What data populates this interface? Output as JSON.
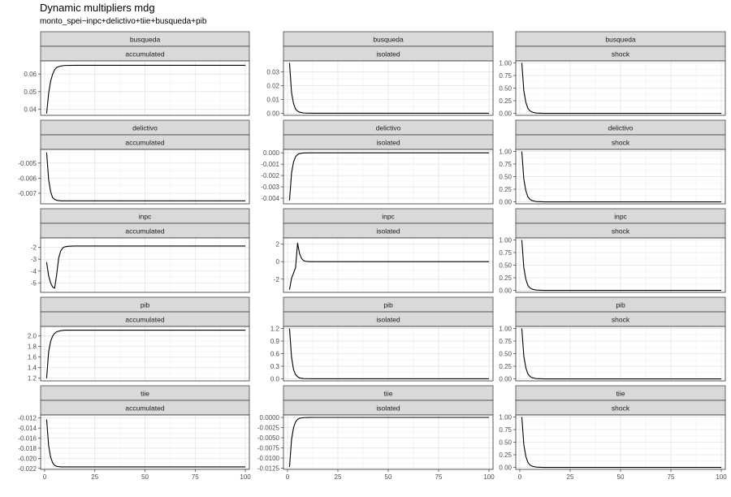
{
  "title": "Dynamic multipliers mdg",
  "subtitle": "monto_spei~inpc+delictivo+tiie+busqueda+pib",
  "chart_data": {
    "type": "line",
    "title": "Dynamic multipliers mdg",
    "subtitle": "monto_spei~inpc+delictivo+tiie+busqueda+pib",
    "facet_rows": [
      "busqueda",
      "delictivo",
      "inpc",
      "pib",
      "tiie"
    ],
    "facet_cols": [
      "accumulated",
      "isolated",
      "shock"
    ],
    "x_ticks": [
      0,
      25,
      50,
      75,
      100
    ],
    "xlim": [
      -2,
      102
    ],
    "grid": true,
    "panels": [
      {
        "row": "busqueda",
        "col": "accumulated",
        "ylim": [
          0.0365,
          0.0675
        ],
        "yticks": [
          0.04,
          0.05,
          0.06
        ],
        "ytick_labels": [
          "0.04",
          "0.05",
          "0.06"
        ],
        "points": [
          [
            1,
            0.0375
          ],
          [
            2,
            0.049
          ],
          [
            3,
            0.056
          ],
          [
            4,
            0.06
          ],
          [
            5,
            0.0625
          ],
          [
            6,
            0.0638
          ],
          [
            8,
            0.0646
          ],
          [
            10,
            0.0649
          ],
          [
            15,
            0.065
          ],
          [
            100,
            0.065
          ]
        ]
      },
      {
        "row": "busqueda",
        "col": "isolated",
        "ylim": [
          -0.0015,
          0.038
        ],
        "yticks": [
          0,
          0.01,
          0.02,
          0.03
        ],
        "ytick_labels": [
          "0.00",
          "0.01",
          "0.02",
          "0.03"
        ],
        "points": [
          [
            1,
            0.0365
          ],
          [
            2,
            0.015
          ],
          [
            3,
            0.007
          ],
          [
            4,
            0.003
          ],
          [
            5,
            0.0015
          ],
          [
            6,
            0.0008
          ],
          [
            8,
            0.0002
          ],
          [
            12,
            0
          ],
          [
            100,
            0
          ]
        ]
      },
      {
        "row": "busqueda",
        "col": "shock",
        "ylim": [
          -0.04,
          1.04
        ],
        "yticks": [
          0,
          0.25,
          0.5,
          0.75,
          1
        ],
        "ytick_labels": [
          "0.00",
          "0.25",
          "0.50",
          "0.75",
          "1.00"
        ],
        "points": [
          [
            1,
            1
          ],
          [
            2,
            0.45
          ],
          [
            3,
            0.22
          ],
          [
            4,
            0.1
          ],
          [
            5,
            0.05
          ],
          [
            6,
            0.025
          ],
          [
            8,
            0.006
          ],
          [
            12,
            0
          ],
          [
            100,
            0
          ]
        ]
      },
      {
        "row": "delictivo",
        "col": "accumulated",
        "ylim": [
          -0.0077,
          -0.0041
        ],
        "yticks": [
          -0.005,
          -0.006,
          -0.007
        ],
        "ytick_labels": [
          "-0.005",
          "-0.006",
          "-0.007"
        ],
        "points": [
          [
            1,
            -0.0043
          ],
          [
            2,
            -0.0061
          ],
          [
            3,
            -0.0069
          ],
          [
            4,
            -0.0073
          ],
          [
            5,
            -0.0074
          ],
          [
            6,
            -0.00747
          ],
          [
            8,
            -0.0075
          ],
          [
            100,
            -0.0075
          ]
        ]
      },
      {
        "row": "delictivo",
        "col": "isolated",
        "ylim": [
          -0.0045,
          0.0003
        ],
        "yticks": [
          0,
          -0.001,
          -0.002,
          -0.003,
          -0.004
        ],
        "ytick_labels": [
          "0.000",
          "-0.001",
          "-0.002",
          "-0.003",
          "-0.004"
        ],
        "points": [
          [
            1,
            -0.0042
          ],
          [
            2,
            -0.0018
          ],
          [
            3,
            -0.0008
          ],
          [
            4,
            -0.00035
          ],
          [
            5,
            -0.00015
          ],
          [
            6,
            -6e-05
          ],
          [
            8,
            -1e-05
          ],
          [
            12,
            0
          ],
          [
            100,
            0
          ]
        ]
      },
      {
        "row": "delictivo",
        "col": "shock",
        "ylim": [
          -0.04,
          1.04
        ],
        "yticks": [
          0,
          0.25,
          0.5,
          0.75,
          1
        ],
        "ytick_labels": [
          "0.00",
          "0.25",
          "0.50",
          "0.75",
          "1.00"
        ],
        "points": [
          [
            1,
            1
          ],
          [
            2,
            0.45
          ],
          [
            3,
            0.22
          ],
          [
            4,
            0.1
          ],
          [
            5,
            0.05
          ],
          [
            6,
            0.025
          ],
          [
            8,
            0.006
          ],
          [
            12,
            0
          ],
          [
            100,
            0
          ]
        ]
      },
      {
        "row": "inpc",
        "col": "accumulated",
        "ylim": [
          -5.8,
          -1.2
        ],
        "yticks": [
          -2,
          -3,
          -4,
          -5
        ],
        "ytick_labels": [
          "-2",
          "-3",
          "-4",
          "-5"
        ],
        "points": [
          [
            1,
            -3.25
          ],
          [
            2,
            -4.4
          ],
          [
            3,
            -5.0
          ],
          [
            4,
            -5.35
          ],
          [
            5,
            -5.45
          ],
          [
            6,
            -4.3
          ],
          [
            7,
            -2.9
          ],
          [
            8,
            -2.3
          ],
          [
            9,
            -2.05
          ],
          [
            10,
            -1.95
          ],
          [
            12,
            -1.9
          ],
          [
            15,
            -1.88
          ],
          [
            100,
            -1.88
          ]
        ]
      },
      {
        "row": "inpc",
        "col": "isolated",
        "ylim": [
          -3.5,
          2.7
        ],
        "yticks": [
          2,
          0,
          -2
        ],
        "ytick_labels": [
          "2",
          "0",
          "-2"
        ],
        "points": [
          [
            1,
            -3.2
          ],
          [
            2,
            -1.9
          ],
          [
            3,
            -1.3
          ],
          [
            4,
            -0.7
          ],
          [
            5,
            2.1
          ],
          [
            6,
            0.9
          ],
          [
            7,
            0.35
          ],
          [
            8,
            0.12
          ],
          [
            9,
            0.04
          ],
          [
            11,
            0
          ],
          [
            100,
            0
          ]
        ]
      },
      {
        "row": "inpc",
        "col": "shock",
        "ylim": [
          -0.04,
          1.04
        ],
        "yticks": [
          0,
          0.25,
          0.5,
          0.75,
          1
        ],
        "ytick_labels": [
          "0.00",
          "0.25",
          "0.50",
          "0.75",
          "1.00"
        ],
        "points": [
          [
            1,
            1
          ],
          [
            2,
            0.45
          ],
          [
            3,
            0.22
          ],
          [
            4,
            0.1
          ],
          [
            5,
            0.05
          ],
          [
            6,
            0.025
          ],
          [
            8,
            0.006
          ],
          [
            12,
            0
          ],
          [
            100,
            0
          ]
        ]
      },
      {
        "row": "pib",
        "col": "accumulated",
        "ylim": [
          1.15,
          2.18
        ],
        "yticks": [
          1.2,
          1.4,
          1.6,
          1.8,
          2.0
        ],
        "ytick_labels": [
          "1.2",
          "1.4",
          "1.6",
          "1.8",
          "2.0"
        ],
        "points": [
          [
            1,
            1.2
          ],
          [
            2,
            1.7
          ],
          [
            3,
            1.9
          ],
          [
            4,
            2.0
          ],
          [
            5,
            2.05
          ],
          [
            6,
            2.08
          ],
          [
            8,
            2.1
          ],
          [
            10,
            2.11
          ],
          [
            100,
            2.11
          ]
        ]
      },
      {
        "row": "pib",
        "col": "isolated",
        "ylim": [
          -0.05,
          1.25
        ],
        "yticks": [
          0,
          0.3,
          0.6,
          0.9,
          1.2
        ],
        "ytick_labels": [
          "0.0",
          "0.3",
          "0.6",
          "0.9",
          "1.2"
        ],
        "points": [
          [
            1,
            1.2
          ],
          [
            2,
            0.52
          ],
          [
            3,
            0.22
          ],
          [
            4,
            0.1
          ],
          [
            5,
            0.05
          ],
          [
            6,
            0.02
          ],
          [
            8,
            0.005
          ],
          [
            12,
            0
          ],
          [
            100,
            0
          ]
        ]
      },
      {
        "row": "pib",
        "col": "shock",
        "ylim": [
          -0.04,
          1.04
        ],
        "yticks": [
          0,
          0.25,
          0.5,
          0.75,
          1
        ],
        "ytick_labels": [
          "0.00",
          "0.25",
          "0.50",
          "0.75",
          "1.00"
        ],
        "points": [
          [
            1,
            1
          ],
          [
            2,
            0.45
          ],
          [
            3,
            0.22
          ],
          [
            4,
            0.1
          ],
          [
            5,
            0.05
          ],
          [
            6,
            0.025
          ],
          [
            8,
            0.006
          ],
          [
            12,
            0
          ],
          [
            100,
            0
          ]
        ]
      },
      {
        "row": "tiie",
        "col": "accumulated",
        "ylim": [
          -0.0222,
          -0.0114
        ],
        "yticks": [
          -0.012,
          -0.014,
          -0.016,
          -0.018,
          -0.02,
          -0.022
        ],
        "ytick_labels": [
          "-0.012",
          "-0.014",
          "-0.016",
          "-0.018",
          "-0.020",
          "-0.022"
        ],
        "points": [
          [
            1,
            -0.0123
          ],
          [
            2,
            -0.0175
          ],
          [
            3,
            -0.0198
          ],
          [
            4,
            -0.0209
          ],
          [
            5,
            -0.0214
          ],
          [
            6,
            -0.0216
          ],
          [
            8,
            -0.0217
          ],
          [
            100,
            -0.0217
          ]
        ]
      },
      {
        "row": "tiie",
        "col": "isolated",
        "ylim": [
          -0.0128,
          0.0006
        ],
        "yticks": [
          0,
          -0.0025,
          -0.005,
          -0.0075,
          -0.01,
          -0.0125
        ],
        "ytick_labels": [
          "0.0000",
          "-0.0025",
          "-0.0050",
          "-0.0075",
          "-0.0100",
          "-0.0125"
        ],
        "points": [
          [
            1,
            -0.0122
          ],
          [
            2,
            -0.0055
          ],
          [
            3,
            -0.0025
          ],
          [
            4,
            -0.0011
          ],
          [
            5,
            -0.0005
          ],
          [
            6,
            -0.0002
          ],
          [
            8,
            -5e-05
          ],
          [
            12,
            0
          ],
          [
            100,
            0
          ]
        ]
      },
      {
        "row": "tiie",
        "col": "shock",
        "ylim": [
          -0.04,
          1.04
        ],
        "yticks": [
          0,
          0.25,
          0.5,
          0.75,
          1
        ],
        "ytick_labels": [
          "0.00",
          "0.25",
          "0.50",
          "0.75",
          "1.00"
        ],
        "points": [
          [
            1,
            1
          ],
          [
            2,
            0.45
          ],
          [
            3,
            0.22
          ],
          [
            4,
            0.1
          ],
          [
            5,
            0.05
          ],
          [
            6,
            0.025
          ],
          [
            8,
            0.006
          ],
          [
            12,
            0
          ],
          [
            100,
            0
          ]
        ]
      }
    ]
  }
}
